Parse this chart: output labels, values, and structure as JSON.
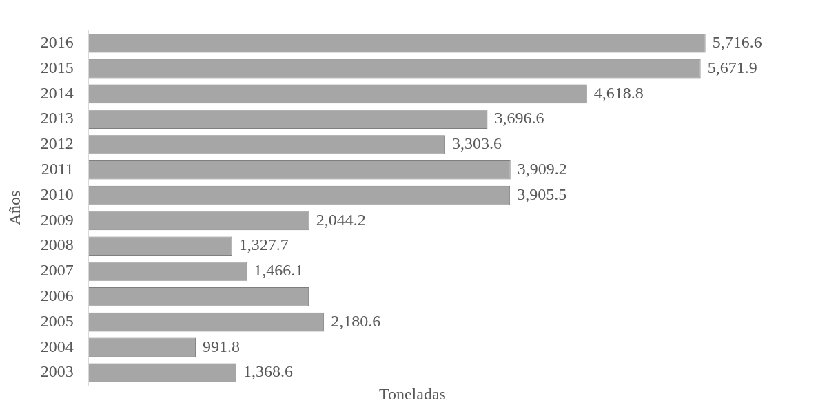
{
  "chart_data": {
    "type": "bar",
    "orientation": "horizontal",
    "xlabel": "Toneladas",
    "ylabel": "Años",
    "categories": [
      "2016",
      "2015",
      "2014",
      "2013",
      "2012",
      "2011",
      "2010",
      "2009",
      "2008",
      "2007",
      "2006",
      "2005",
      "2004",
      "2003"
    ],
    "values": [
      5716.6,
      5671.9,
      4618.8,
      3696.6,
      3303.6,
      3909.2,
      3905.5,
      2044.2,
      1327.7,
      1466.1,
      2040,
      2180.6,
      991.8,
      1368.6
    ],
    "value_labels": [
      "5,716.6",
      "5,671.9",
      "4,618.8",
      "3,696.6",
      "3,303.6",
      "3,909.2",
      "3,905.5",
      "2,044.2",
      "1,327.7",
      "1,466.1",
      null,
      "2,180.6",
      "991.8",
      "1,368.6"
    ],
    "color": "#a6a6a6",
    "grid": false,
    "legend": false
  }
}
